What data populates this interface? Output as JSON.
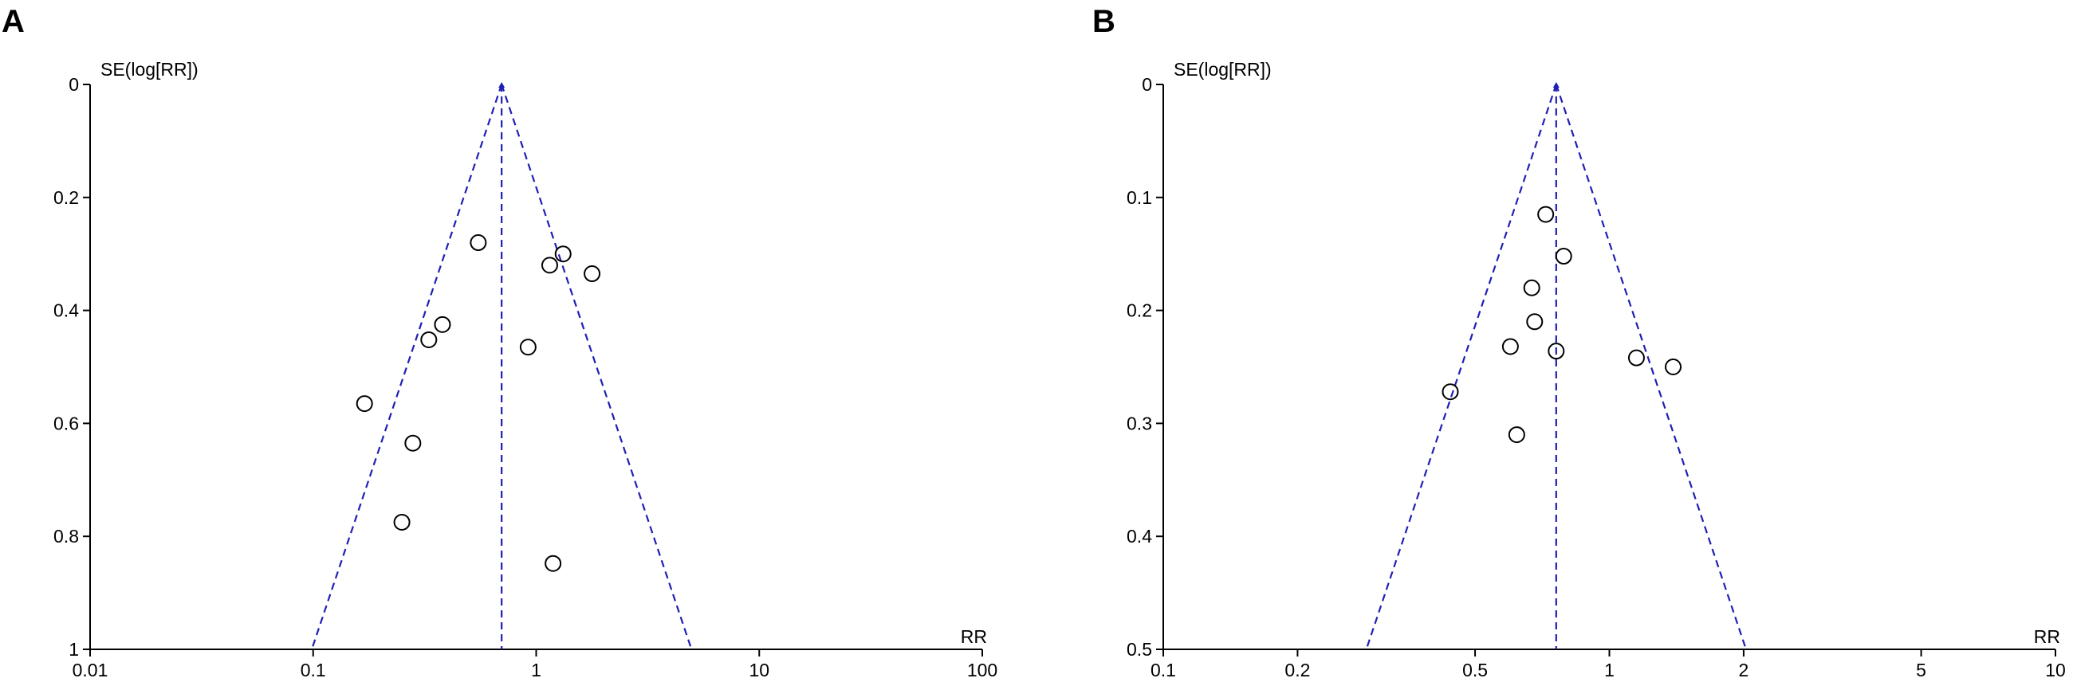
{
  "chart_data": [
    {
      "type": "scatter",
      "panel_label": "A",
      "title": "",
      "xlabel": "RR",
      "ylabel": "SE(log[RR])",
      "xscale": "log",
      "yaxis_reversed": true,
      "xlim": [
        0.01,
        100
      ],
      "ylim": [
        0,
        1
      ],
      "x_ticks": [
        0.01,
        0.1,
        1,
        10,
        100
      ],
      "x_tick_labels": [
        "0.01",
        "0.1",
        "1",
        "10",
        "100"
      ],
      "y_ticks": [
        0,
        0.2,
        0.4,
        0.6,
        0.8,
        1
      ],
      "y_tick_labels": [
        "0",
        "0.2",
        "0.4",
        "0.6",
        "0.8",
        "1"
      ],
      "grid": false,
      "pooled_rr": 0.7,
      "funnel_color": "#1f1fb4",
      "marker_color": "#000000",
      "points": [
        {
          "x": 0.55,
          "y": 0.28
        },
        {
          "x": 1.32,
          "y": 0.3
        },
        {
          "x": 1.15,
          "y": 0.32
        },
        {
          "x": 1.78,
          "y": 0.335
        },
        {
          "x": 0.38,
          "y": 0.425
        },
        {
          "x": 0.33,
          "y": 0.452
        },
        {
          "x": 0.92,
          "y": 0.465
        },
        {
          "x": 0.17,
          "y": 0.565
        },
        {
          "x": 0.28,
          "y": 0.635
        },
        {
          "x": 0.25,
          "y": 0.775
        },
        {
          "x": 1.19,
          "y": 0.848
        }
      ]
    },
    {
      "type": "scatter",
      "panel_label": "B",
      "title": "",
      "xlabel": "RR",
      "ylabel": "SE(log[RR])",
      "xscale": "log",
      "yaxis_reversed": true,
      "xlim": [
        0.1,
        10
      ],
      "ylim": [
        0,
        0.5
      ],
      "x_ticks": [
        0.1,
        0.2,
        0.5,
        1,
        2,
        5,
        10
      ],
      "x_tick_labels": [
        "0.1",
        "0.2",
        "0.5",
        "1",
        "2",
        "5",
        "10"
      ],
      "y_ticks": [
        0,
        0.1,
        0.2,
        0.3,
        0.4,
        0.5
      ],
      "y_tick_labels": [
        "0",
        "0.1",
        "0.2",
        "0.3",
        "0.4",
        "0.5"
      ],
      "grid": false,
      "pooled_rr": 0.76,
      "funnel_color": "#1f1fb4",
      "marker_color": "#000000",
      "points": [
        {
          "x": 0.72,
          "y": 0.115
        },
        {
          "x": 0.79,
          "y": 0.152
        },
        {
          "x": 0.67,
          "y": 0.18
        },
        {
          "x": 0.68,
          "y": 0.21
        },
        {
          "x": 0.6,
          "y": 0.232
        },
        {
          "x": 0.76,
          "y": 0.236
        },
        {
          "x": 1.15,
          "y": 0.242
        },
        {
          "x": 1.39,
          "y": 0.25
        },
        {
          "x": 0.44,
          "y": 0.272
        },
        {
          "x": 0.62,
          "y": 0.31
        }
      ]
    }
  ]
}
